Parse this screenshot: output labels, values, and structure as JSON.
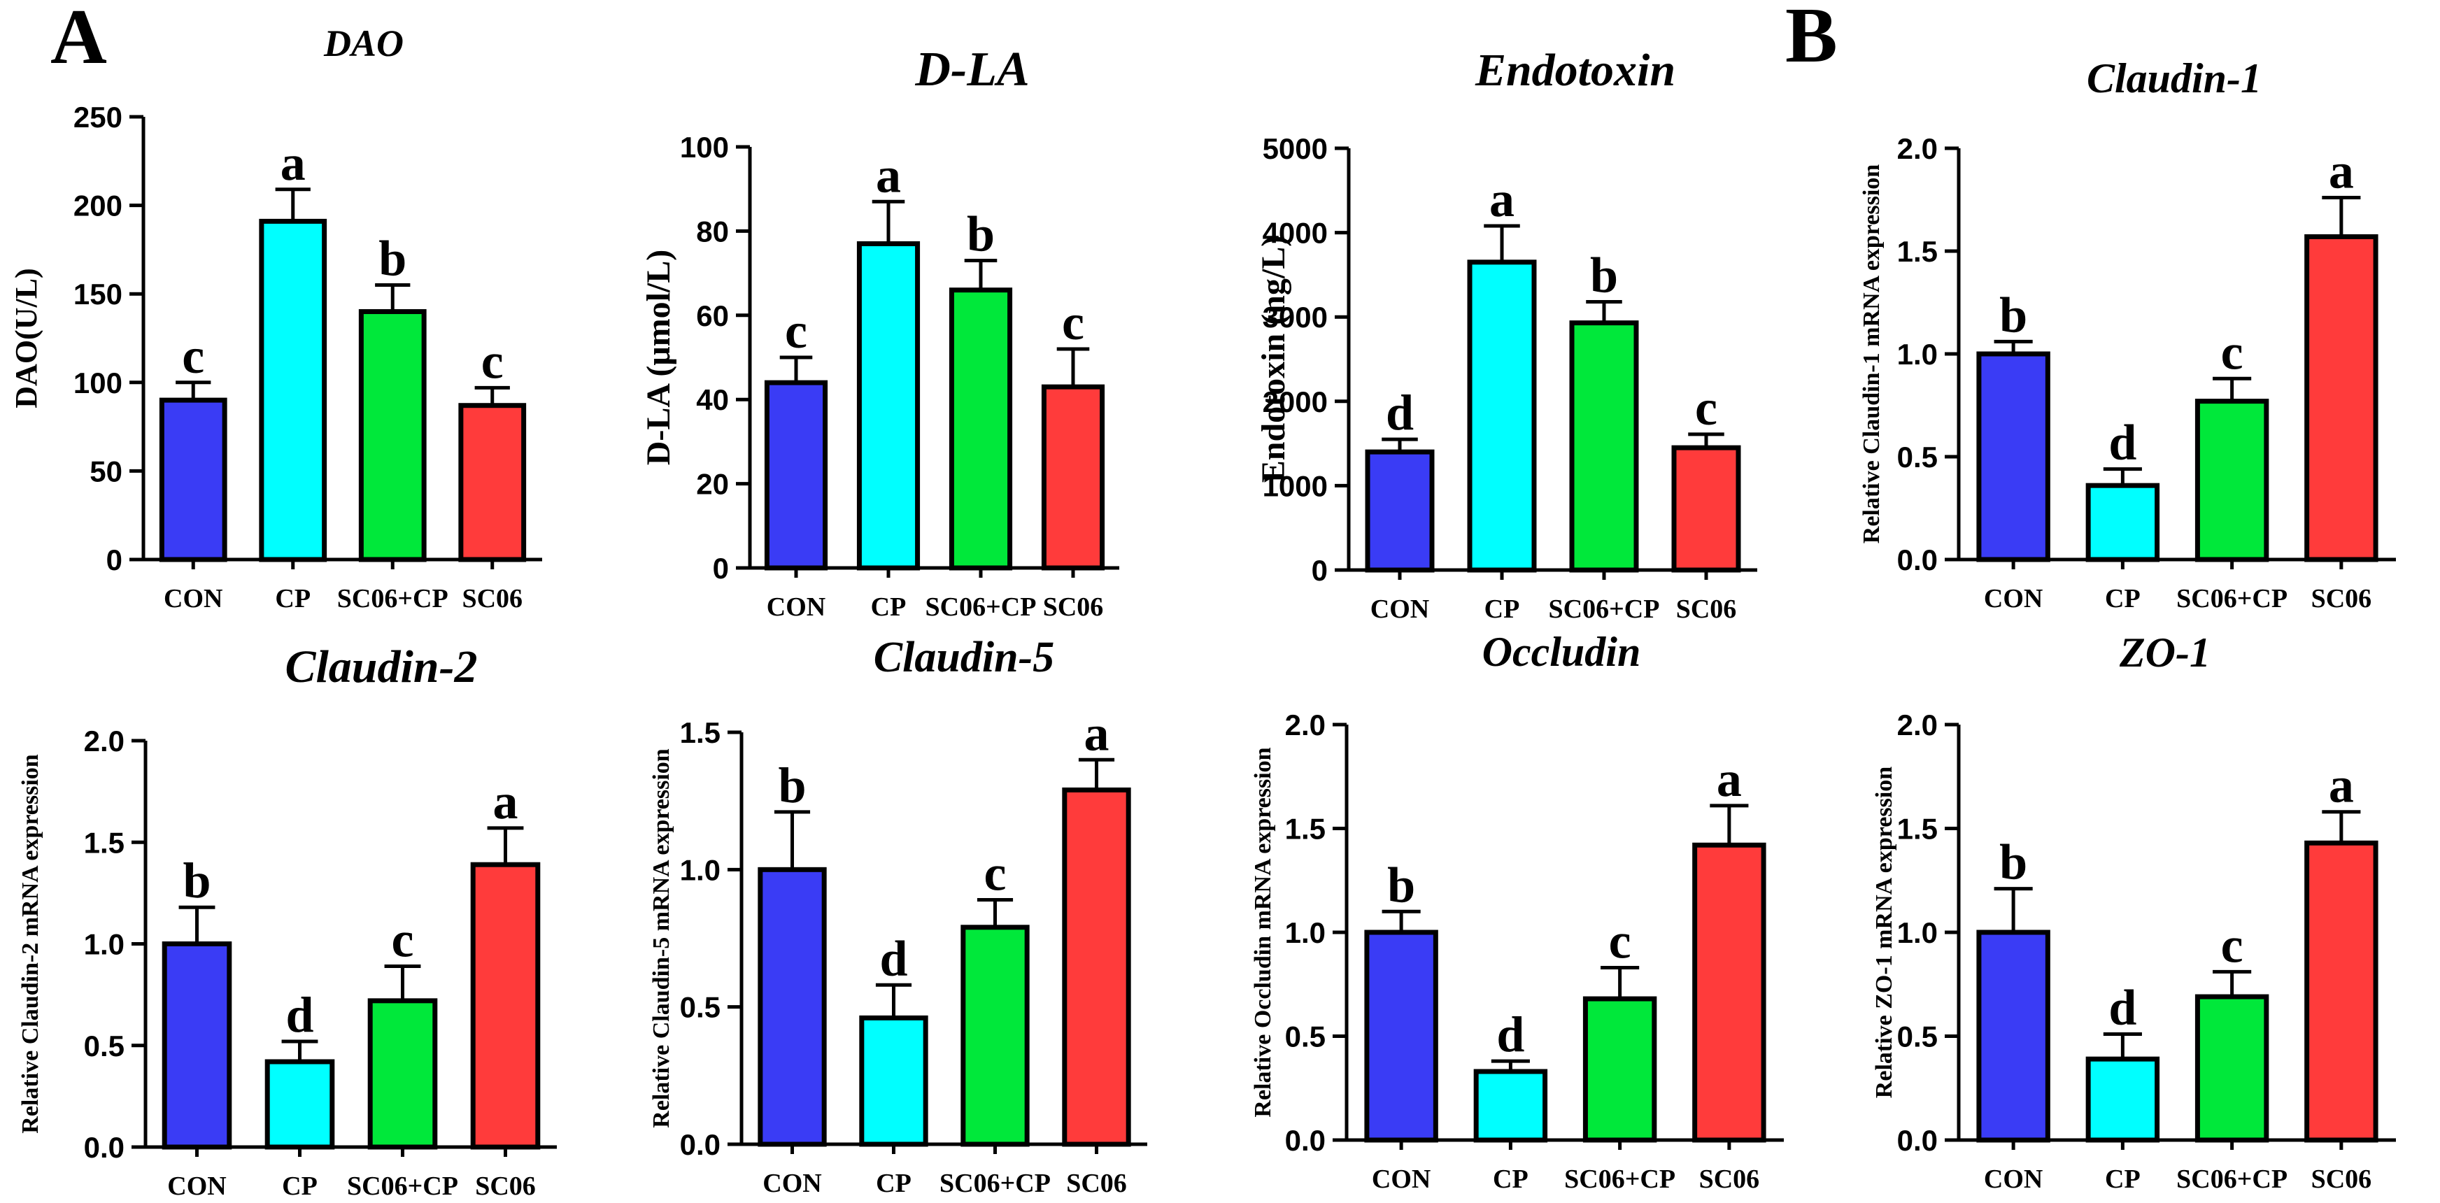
{
  "panel_labels": [
    "A",
    "B"
  ],
  "chart_data": [
    {
      "type": "bar",
      "title": "DAO",
      "ylabel": "DAO(U/L)",
      "categories": [
        "CON",
        "CP",
        "SC06+CP",
        "SC06"
      ],
      "values": [
        90,
        191,
        140,
        87
      ],
      "errors": [
        10,
        18,
        15,
        10
      ],
      "letters": [
        "c",
        "a",
        "b",
        "c"
      ],
      "colors": [
        "#3a3cf5",
        "#00ffff",
        "#00e83a",
        "#ff3b3b"
      ],
      "ylim": [
        0,
        250
      ],
      "yticks": [
        0,
        50,
        100,
        150,
        200,
        250
      ],
      "ytick_labels": [
        "0",
        "50",
        "100",
        "150",
        "200",
        "250"
      ]
    },
    {
      "type": "bar",
      "title": "D-LA",
      "ylabel": "D-LA (μmol/L)",
      "categories": [
        "CON",
        "CP",
        "SC06+CP",
        "SC06"
      ],
      "values": [
        44,
        77,
        66,
        43
      ],
      "errors": [
        6,
        10,
        7,
        9
      ],
      "letters": [
        "c",
        "a",
        "b",
        "c"
      ],
      "colors": [
        "#3a3cf5",
        "#00ffff",
        "#00e83a",
        "#ff3b3b"
      ],
      "ylim": [
        0,
        100
      ],
      "yticks": [
        0,
        20,
        40,
        60,
        80,
        100
      ],
      "ytick_labels": [
        "0",
        "20",
        "40",
        "60",
        "80",
        "100"
      ]
    },
    {
      "type": "bar",
      "title": "Endotoxin",
      "ylabel": "Endotoxin (ng/L)",
      "categories": [
        "CON",
        "CP",
        "SC06+CP",
        "SC06"
      ],
      "values": [
        1400,
        3650,
        2930,
        1450
      ],
      "errors": [
        150,
        430,
        250,
        160
      ],
      "letters": [
        "d",
        "a",
        "b",
        "c"
      ],
      "colors": [
        "#3a3cf5",
        "#00ffff",
        "#00e83a",
        "#ff3b3b"
      ],
      "ylim": [
        0,
        5000
      ],
      "yticks": [
        0,
        1000,
        2000,
        3000,
        4000,
        5000
      ],
      "ytick_labels": [
        "0",
        "1000",
        "2000",
        "3000",
        "4000",
        "5000"
      ]
    },
    {
      "type": "bar",
      "title": "Claudin-1",
      "ylabel": "Relative Claudin-1 mRNA expression",
      "categories": [
        "CON",
        "CP",
        "SC06+CP",
        "SC06"
      ],
      "values": [
        1.0,
        0.36,
        0.77,
        1.57
      ],
      "errors": [
        0.06,
        0.08,
        0.11,
        0.19
      ],
      "letters": [
        "b",
        "d",
        "c",
        "a"
      ],
      "colors": [
        "#3a3cf5",
        "#00ffff",
        "#00e83a",
        "#ff3b3b"
      ],
      "ylim": [
        0,
        2.0
      ],
      "yticks": [
        0,
        0.5,
        1.0,
        1.5,
        2.0
      ],
      "ytick_labels": [
        "0.0",
        "0.5",
        "1.0",
        "1.5",
        "2.0"
      ]
    },
    {
      "type": "bar",
      "title": "Claudin-2",
      "ylabel": "Relative Claudin-2 mRNA expression",
      "categories": [
        "CON",
        "CP",
        "SC06+CP",
        "SC06"
      ],
      "values": [
        1.0,
        0.42,
        0.72,
        1.39
      ],
      "errors": [
        0.18,
        0.1,
        0.17,
        0.18
      ],
      "letters": [
        "b",
        "d",
        "c",
        "a"
      ],
      "colors": [
        "#3a3cf5",
        "#00ffff",
        "#00e83a",
        "#ff3b3b"
      ],
      "ylim": [
        0,
        2.0
      ],
      "yticks": [
        0,
        0.5,
        1.0,
        1.5,
        2.0
      ],
      "ytick_labels": [
        "0.0",
        "0.5",
        "1.0",
        "1.5",
        "2.0"
      ]
    },
    {
      "type": "bar",
      "title": "Claudin-5",
      "ylabel": "Relative Claudin-5 mRNA expression",
      "categories": [
        "CON",
        "CP",
        "SC06+CP",
        "SC06"
      ],
      "values": [
        1.0,
        0.46,
        0.79,
        1.29
      ],
      "errors": [
        0.21,
        0.12,
        0.1,
        0.11
      ],
      "letters": [
        "b",
        "d",
        "c",
        "a"
      ],
      "colors": [
        "#3a3cf5",
        "#00ffff",
        "#00e83a",
        "#ff3b3b"
      ],
      "ylim": [
        0,
        1.5
      ],
      "yticks": [
        0,
        0.5,
        1.0,
        1.5
      ],
      "ytick_labels": [
        "0.0",
        "0.5",
        "1.0",
        "1.5"
      ]
    },
    {
      "type": "bar",
      "title": "Occludin",
      "ylabel": "Relative Occludin mRNA expression",
      "categories": [
        "CON",
        "CP",
        "SC06+CP",
        "SC06"
      ],
      "values": [
        1.0,
        0.33,
        0.68,
        1.42
      ],
      "errors": [
        0.1,
        0.05,
        0.15,
        0.19
      ],
      "letters": [
        "b",
        "d",
        "c",
        "a"
      ],
      "colors": [
        "#3a3cf5",
        "#00ffff",
        "#00e83a",
        "#ff3b3b"
      ],
      "ylim": [
        0,
        2.0
      ],
      "yticks": [
        0,
        0.5,
        1.0,
        1.5,
        2.0
      ],
      "ytick_labels": [
        "0.0",
        "0.5",
        "1.0",
        "1.5",
        "2.0"
      ]
    },
    {
      "type": "bar",
      "title": "ZO-1",
      "ylabel": "Relative ZO-1 mRNA expression",
      "categories": [
        "CON",
        "CP",
        "SC06+CP",
        "SC06"
      ],
      "values": [
        1.0,
        0.39,
        0.69,
        1.43
      ],
      "errors": [
        0.21,
        0.12,
        0.12,
        0.15
      ],
      "letters": [
        "b",
        "d",
        "c",
        "a"
      ],
      "colors": [
        "#3a3cf5",
        "#00ffff",
        "#00e83a",
        "#ff3b3b"
      ],
      "ylim": [
        0,
        2.0
      ],
      "yticks": [
        0,
        0.5,
        1.0,
        1.5,
        2.0
      ],
      "ytick_labels": [
        "0.0",
        "0.5",
        "1.0",
        "1.5",
        "2.0"
      ]
    }
  ]
}
